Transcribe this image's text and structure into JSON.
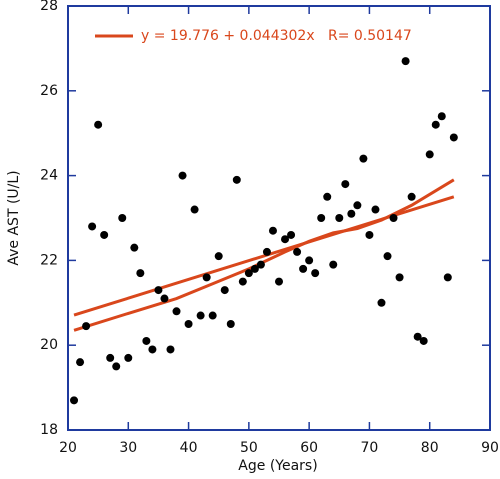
{
  "chart_data": {
    "type": "scatter",
    "x_label": "Age (Years)",
    "y_label": "Ave AST (U/L)",
    "legend_text": "y = 19.776 + 0.044302x   R= 0.50147",
    "xlim": [
      20,
      90
    ],
    "xticks": [
      20,
      30,
      40,
      50,
      60,
      70,
      80,
      90
    ],
    "ylim": [
      18,
      28
    ],
    "yticks": [
      18,
      20,
      22,
      24,
      26,
      28
    ],
    "axis_color": "#1f3a9e",
    "points": {
      "color": "#000000",
      "x": [
        21,
        22,
        23,
        24,
        25,
        26,
        27,
        28,
        29,
        30,
        31,
        32,
        33,
        34,
        35,
        36,
        37,
        38,
        39,
        40,
        41,
        42,
        43,
        44,
        45,
        46,
        47,
        48,
        49,
        50,
        51,
        52,
        53,
        54,
        55,
        56,
        57,
        58,
        59,
        60,
        61,
        62,
        63,
        64,
        65,
        66,
        67,
        68,
        69,
        70,
        71,
        72,
        73,
        74,
        75,
        76,
        77,
        78,
        79,
        80,
        81,
        82,
        83,
        84
      ],
      "values": [
        18.7,
        19.6,
        20.45,
        22.8,
        25.2,
        22.6,
        19.7,
        19.5,
        23.0,
        19.7,
        22.3,
        21.7,
        20.1,
        19.9,
        21.3,
        21.1,
        19.9,
        20.8,
        24.0,
        20.5,
        23.2,
        20.7,
        21.6,
        20.7,
        22.1,
        21.3,
        20.5,
        23.9,
        21.5,
        21.7,
        21.8,
        21.9,
        22.2,
        22.7,
        21.5,
        22.5,
        22.6,
        22.2,
        21.8,
        22.0,
        21.7,
        23.0,
        23.5,
        21.9,
        23.0,
        23.8,
        23.1,
        23.3,
        24.4,
        22.6,
        23.2,
        21.0,
        22.1,
        23.0,
        21.6,
        26.7,
        23.5,
        20.2,
        20.1,
        24.5,
        25.2,
        25.4,
        21.6,
        24.9
      ]
    },
    "lines": [
      {
        "color": "#d9471c",
        "x": [
          21,
          84
        ],
        "values": [
          20.71,
          23.5
        ]
      },
      {
        "color": "#d9471c",
        "x": [
          21,
          30,
          38,
          44,
          50,
          56,
          60,
          64,
          68,
          72,
          77,
          84
        ],
        "values": [
          20.35,
          20.75,
          21.1,
          21.45,
          21.8,
          22.2,
          22.45,
          22.65,
          22.75,
          22.95,
          23.3,
          23.9
        ]
      }
    ]
  }
}
